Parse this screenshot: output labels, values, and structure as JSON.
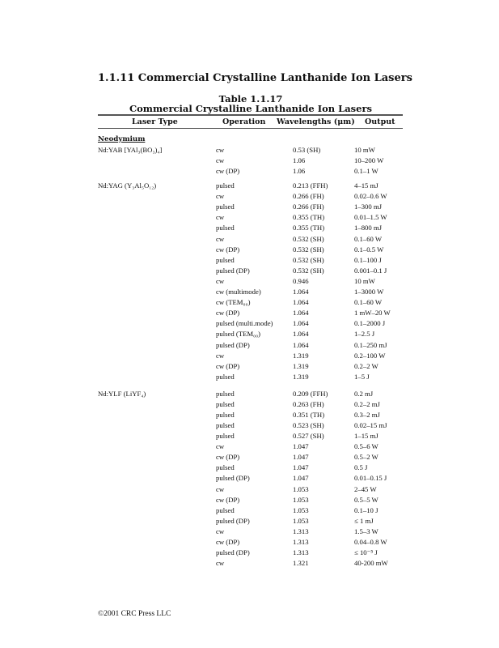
{
  "section_title": "1.1.11  Commercial Crystalline Lanthanide Ion Lasers",
  "table": {
    "number": "Table 1.1.17",
    "title": "Commercial Crystalline Lanthanide Ion Lasers",
    "headers": [
      "Laser Type",
      "Operation",
      "Wavelengths (μm)",
      "Output"
    ],
    "group": "Neodymium",
    "lasers": [
      {
        "type": "Nd:YAB [YAl₃(BO₃)₄]",
        "rows": [
          [
            "cw",
            "0.53 (SH)",
            "10 mW"
          ],
          [
            "cw",
            "1.06",
            "10–200 W"
          ],
          [
            "cw (DP)",
            "1.06",
            "0.1–1 W"
          ]
        ]
      },
      {
        "type": "Nd:YAG (Y₃Al₅O₁₂)",
        "rows": [
          [
            "pulsed",
            "0.213 (FFH)",
            "4–15 mJ"
          ],
          [
            "cw",
            "0.266 (FH)",
            "0.02–0.6 W"
          ],
          [
            "pulsed",
            "0.266 (FH)",
            "1–300 mJ"
          ],
          [
            "cw",
            "0.355 (TH)",
            "0.01–1.5 W"
          ],
          [
            "pulsed",
            "0.355 (TH)",
            "1–800 mJ"
          ],
          [
            "cw",
            "0.532 (SH)",
            "0.1–60 W"
          ],
          [
            "cw (DP)",
            "0.532 (SH)",
            "0.1–0.5 W"
          ],
          [
            "pulsed",
            "0.532 (SH)",
            "0.1–100 J"
          ],
          [
            "pulsed (DP)",
            "0.532 (SH)",
            "0.001–0.1 J"
          ],
          [
            "cw",
            "0.946",
            "10 mW"
          ],
          [
            "cw (multimode)",
            "1.064",
            "1–3000 W"
          ],
          [
            "cw (TEM₀₀)",
            "1.064",
            "0.1–60 W"
          ],
          [
            "cw (DP)",
            "1.064",
            "1 mW–20 W"
          ],
          [
            "pulsed (multi.mode)",
            "1.064",
            "0.1–2000 J"
          ],
          [
            "pulsed (TEM₀₀)",
            "1.064",
            "1–2.5 J"
          ],
          [
            "pulsed (DP)",
            "1.064",
            "0.1–250 mJ"
          ],
          [
            "cw",
            "1.319",
            "0.2–100 W"
          ],
          [
            "cw (DP)",
            "1.319",
            "0.2–2 W"
          ],
          [
            "pulsed",
            "1.319",
            "1–5 J"
          ]
        ]
      },
      {
        "type": "Nd:YLF (LiYF₄)",
        "rows": [
          [
            "pulsed",
            "0.209 (FFH)",
            "0.2 mJ"
          ],
          [
            "pulsed",
            "0.263 (FH)",
            "0.2–2 mJ"
          ],
          [
            "pulsed",
            "0.351 (TH)",
            "0.3–2 mJ"
          ],
          [
            "pulsed",
            "0.523 (SH)",
            "0.02–15 mJ"
          ],
          [
            "pulsed",
            "0.527 (SH)",
            "1–15 mJ"
          ],
          [
            "cw",
            "1.047",
            "0.5–6 W"
          ],
          [
            "cw (DP)",
            "1.047",
            "0.5–2 W"
          ],
          [
            "pulsed",
            "1.047",
            "0.5 J"
          ],
          [
            "pulsed (DP)",
            "1.047",
            "0.01–0.15 J"
          ],
          [
            "cw",
            "1.053",
            "2–45 W"
          ],
          [
            "cw (DP)",
            "1.053",
            "0.5–5 W"
          ],
          [
            "pulsed",
            "1.053",
            "0.1–10 J"
          ],
          [
            "pulsed (DP)",
            "1.053",
            "≤ 1 mJ"
          ],
          [
            "cw",
            "1.313",
            "1.5–3 W"
          ],
          [
            "cw (DP)",
            "1.313",
            "0.04–0.8 W"
          ],
          [
            "pulsed (DP)",
            "1.313",
            "≤ 10⁻⁵ J"
          ],
          [
            "cw",
            "1.321",
            "40-200 mW"
          ]
        ]
      }
    ]
  },
  "footer": "©2001 CRC Press LLC"
}
